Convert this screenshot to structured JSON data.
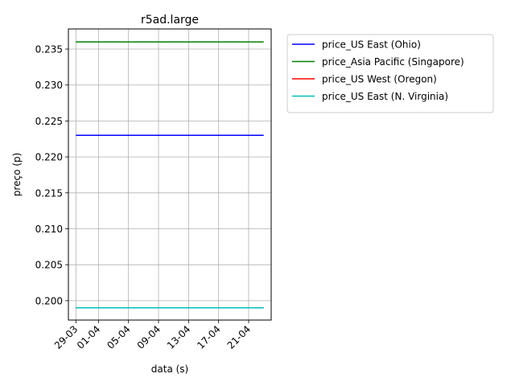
{
  "chart_data": {
    "type": "line",
    "title": "r5ad.large",
    "xlabel": "data (s)",
    "ylabel": "preço (p)",
    "x_tick_labels": [
      "29-03",
      "01-04",
      "05-04",
      "09-04",
      "13-04",
      "17-04",
      "21-04"
    ],
    "x_tick_dates": [
      "2023-03-29",
      "2023-04-01",
      "2023-04-05",
      "2023-04-09",
      "2023-04-13",
      "2023-04-17",
      "2023-04-21"
    ],
    "x_range": [
      "2023-03-28",
      "2023-04-24"
    ],
    "y_ticks": [
      0.2,
      0.205,
      0.21,
      0.215,
      0.22,
      0.225,
      0.23,
      0.235
    ],
    "y_tick_labels": [
      "0.200",
      "0.205",
      "0.210",
      "0.215",
      "0.220",
      "0.225",
      "0.230",
      "0.235"
    ],
    "ylim": [
      0.1973,
      0.2378
    ],
    "grid": true,
    "legend_position": "outside-right-top",
    "series": [
      {
        "name": "price_US East (Ohio)",
        "color": "#0000ff",
        "x": [
          "2023-03-29",
          "2023-04-23"
        ],
        "y": [
          0.223,
          0.223
        ]
      },
      {
        "name": "price_Asia Pacific (Singapore)",
        "color": "#008000",
        "x": [
          "2023-03-29",
          "2023-04-23"
        ],
        "y": [
          0.236,
          0.236
        ]
      },
      {
        "name": "price_US West (Oregon)",
        "color": "#ff0000",
        "x": [
          "2023-03-29",
          "2023-04-23"
        ],
        "y": [
          0.199,
          0.199
        ]
      },
      {
        "name": "price_US East (N. Virginia)",
        "color": "#00bfbf",
        "x": [
          "2023-03-29",
          "2023-04-23"
        ],
        "y": [
          0.199,
          0.199
        ]
      }
    ]
  }
}
